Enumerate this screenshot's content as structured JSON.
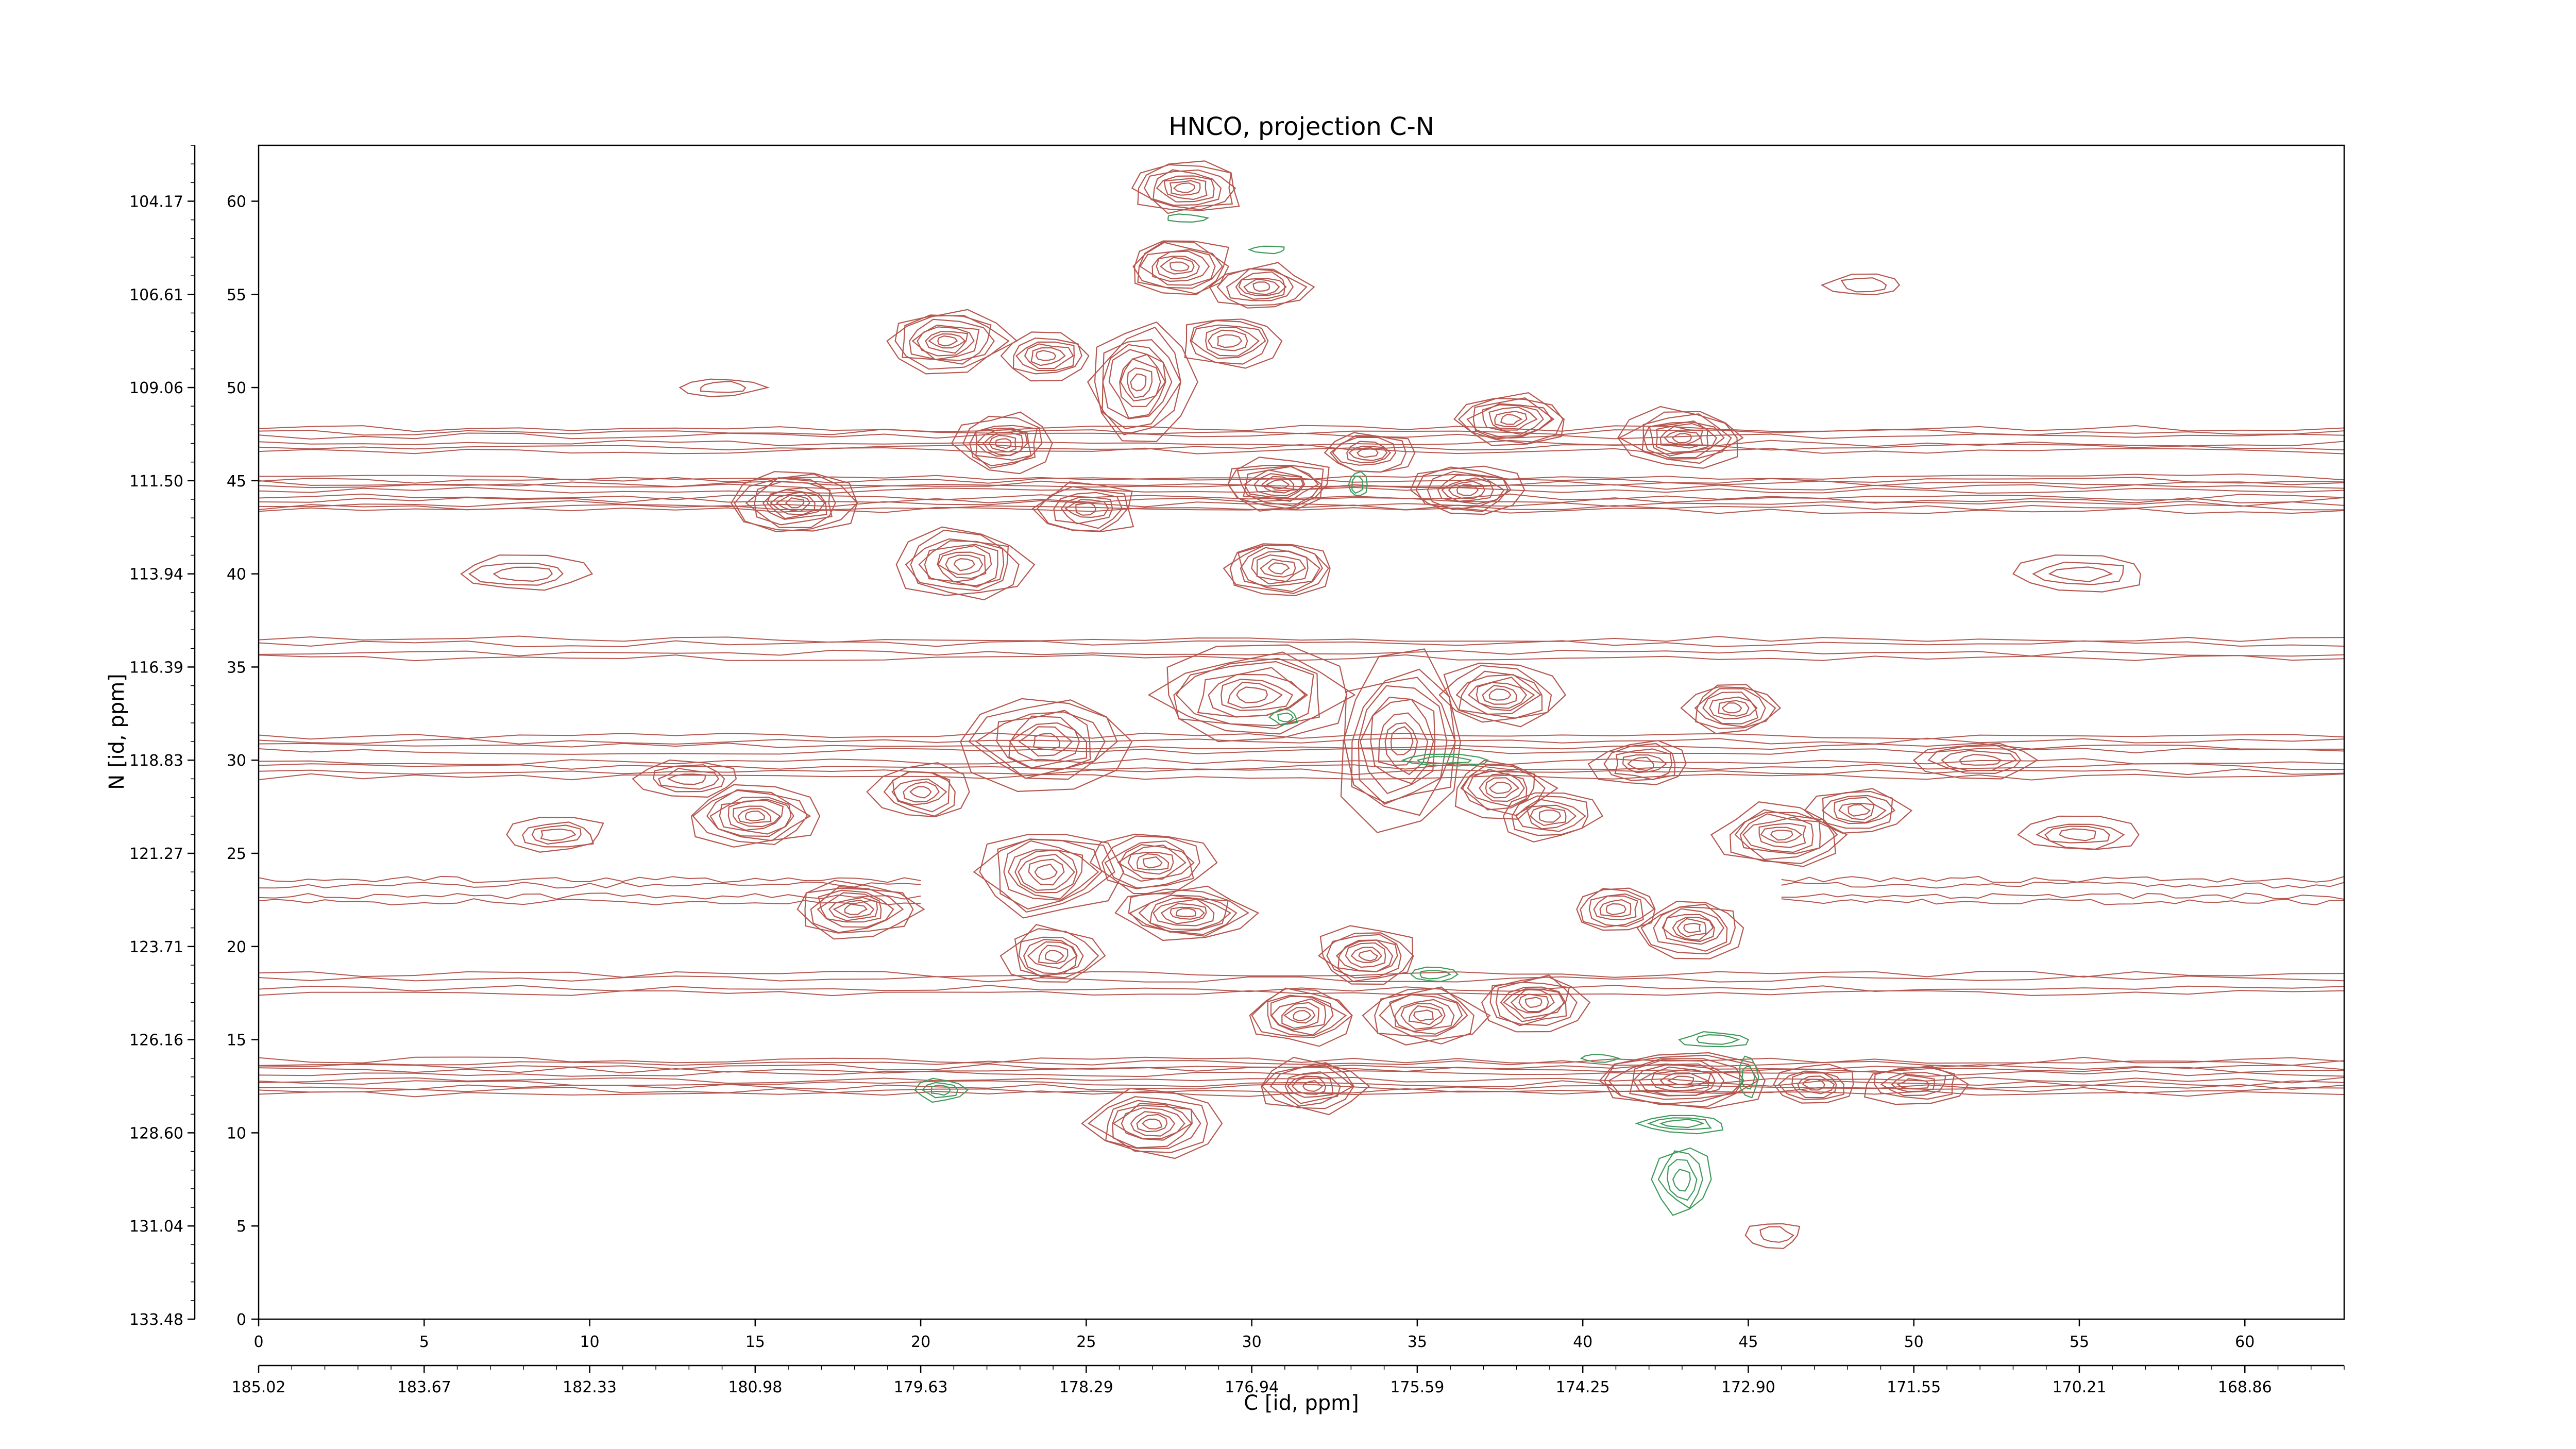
{
  "chart_data": {
    "type": "contour",
    "title": "HNCO, projection C-N",
    "xlabel": "C [id, ppm]",
    "ylabel": "N [id, ppm]",
    "xlim": [
      0,
      63
    ],
    "ylim": [
      0,
      63
    ],
    "x_index_ticks": [
      "0",
      "5",
      "10",
      "15",
      "20",
      "25",
      "30",
      "35",
      "40",
      "45",
      "50",
      "55",
      "60"
    ],
    "x_ppm_ticks": [
      "185.02",
      "183.67",
      "182.33",
      "180.98",
      "179.63",
      "178.29",
      "176.94",
      "175.59",
      "174.25",
      "172.90",
      "171.55",
      "170.21",
      "168.86"
    ],
    "y_index_ticks": [
      "0",
      "5",
      "10",
      "15",
      "20",
      "25",
      "30",
      "35",
      "40",
      "45",
      "50",
      "55",
      "60"
    ],
    "y_ppm_ticks": [
      "133.48",
      "131.04",
      "128.60",
      "126.16",
      "123.71",
      "121.27",
      "118.83",
      "116.39",
      "113.94",
      "111.50",
      "109.06",
      "106.61",
      "104.17"
    ],
    "colors": {
      "positive": "#b5574f",
      "negative": "#3f9a5b",
      "axis": "#000000"
    },
    "peaks": [
      {
        "x": 28.0,
        "y": 60.7,
        "rx": 1.7,
        "ry": 1.4,
        "levels": 8
      },
      {
        "x": 27.8,
        "y": 56.5,
        "rx": 1.6,
        "ry": 1.5,
        "levels": 8
      },
      {
        "x": 30.3,
        "y": 55.4,
        "rx": 1.4,
        "ry": 1.2,
        "levels": 7
      },
      {
        "x": 20.8,
        "y": 52.5,
        "rx": 1.8,
        "ry": 1.6,
        "levels": 9
      },
      {
        "x": 23.8,
        "y": 51.7,
        "rx": 1.3,
        "ry": 1.2,
        "levels": 6
      },
      {
        "x": 26.6,
        "y": 50.3,
        "rx": 1.5,
        "ry": 3.0,
        "levels": 9
      },
      {
        "x": 29.3,
        "y": 52.5,
        "rx": 1.5,
        "ry": 1.4,
        "levels": 6
      },
      {
        "x": 22.5,
        "y": 47.0,
        "rx": 1.4,
        "ry": 1.5,
        "levels": 8
      },
      {
        "x": 37.8,
        "y": 48.3,
        "rx": 1.7,
        "ry": 1.4,
        "levels": 8
      },
      {
        "x": 43.0,
        "y": 47.3,
        "rx": 1.8,
        "ry": 1.5,
        "levels": 9
      },
      {
        "x": 16.2,
        "y": 43.8,
        "rx": 1.8,
        "ry": 1.6,
        "levels": 9
      },
      {
        "x": 30.8,
        "y": 44.8,
        "rx": 1.7,
        "ry": 1.4,
        "levels": 8
      },
      {
        "x": 33.5,
        "y": 46.5,
        "rx": 1.3,
        "ry": 1.1,
        "levels": 6
      },
      {
        "x": 36.5,
        "y": 44.5,
        "rx": 1.6,
        "ry": 1.3,
        "levels": 7
      },
      {
        "x": 25.0,
        "y": 43.5,
        "rx": 1.5,
        "ry": 1.4,
        "levels": 6
      },
      {
        "x": 21.3,
        "y": 40.5,
        "rx": 1.9,
        "ry": 1.9,
        "levels": 9
      },
      {
        "x": 30.8,
        "y": 40.3,
        "rx": 1.7,
        "ry": 1.6,
        "levels": 8
      },
      {
        "x": 30.0,
        "y": 33.5,
        "rx": 3.0,
        "ry": 2.4,
        "levels": 9
      },
      {
        "x": 34.5,
        "y": 31.0,
        "rx": 2.0,
        "ry": 4.5,
        "levels": 9
      },
      {
        "x": 37.5,
        "y": 33.5,
        "rx": 1.8,
        "ry": 1.6,
        "levels": 8
      },
      {
        "x": 44.5,
        "y": 32.8,
        "rx": 1.4,
        "ry": 1.3,
        "levels": 7
      },
      {
        "x": 23.8,
        "y": 31.0,
        "rx": 2.4,
        "ry": 2.4,
        "levels": 8
      },
      {
        "x": 20.0,
        "y": 28.3,
        "rx": 1.4,
        "ry": 1.4,
        "levels": 6
      },
      {
        "x": 15.0,
        "y": 27.0,
        "rx": 1.9,
        "ry": 1.6,
        "levels": 9
      },
      {
        "x": 23.8,
        "y": 24.0,
        "rx": 2.1,
        "ry": 2.4,
        "levels": 9
      },
      {
        "x": 27.0,
        "y": 24.5,
        "rx": 1.7,
        "ry": 1.6,
        "levels": 8
      },
      {
        "x": 37.5,
        "y": 28.5,
        "rx": 1.5,
        "ry": 1.5,
        "levels": 7
      },
      {
        "x": 39.0,
        "y": 27.0,
        "rx": 1.4,
        "ry": 1.3,
        "levels": 6
      },
      {
        "x": 46.0,
        "y": 26.0,
        "rx": 1.9,
        "ry": 1.6,
        "levels": 8
      },
      {
        "x": 48.3,
        "y": 27.3,
        "rx": 1.4,
        "ry": 1.2,
        "levels": 6
      },
      {
        "x": 18.0,
        "y": 22.0,
        "rx": 1.8,
        "ry": 1.5,
        "levels": 8
      },
      {
        "x": 28.0,
        "y": 21.8,
        "rx": 2.0,
        "ry": 1.4,
        "levels": 9
      },
      {
        "x": 24.0,
        "y": 19.5,
        "rx": 1.4,
        "ry": 1.5,
        "levels": 7
      },
      {
        "x": 33.5,
        "y": 19.5,
        "rx": 1.5,
        "ry": 1.5,
        "levels": 8
      },
      {
        "x": 43.3,
        "y": 21.0,
        "rx": 1.5,
        "ry": 1.5,
        "levels": 8
      },
      {
        "x": 41.0,
        "y": 22.0,
        "rx": 1.3,
        "ry": 1.2,
        "levels": 6
      },
      {
        "x": 38.5,
        "y": 17.0,
        "rx": 1.5,
        "ry": 1.5,
        "levels": 8
      },
      {
        "x": 31.5,
        "y": 16.3,
        "rx": 1.5,
        "ry": 1.5,
        "levels": 8
      },
      {
        "x": 35.2,
        "y": 16.3,
        "rx": 1.7,
        "ry": 1.6,
        "levels": 8
      },
      {
        "x": 31.8,
        "y": 12.5,
        "rx": 1.5,
        "ry": 1.4,
        "levels": 7
      },
      {
        "x": 27.0,
        "y": 10.5,
        "rx": 1.9,
        "ry": 1.7,
        "levels": 9
      },
      {
        "x": 43.0,
        "y": 12.8,
        "rx": 2.5,
        "ry": 1.5,
        "levels": 9
      },
      {
        "x": 47.0,
        "y": 12.6,
        "rx": 1.2,
        "ry": 1.0,
        "levels": 5
      },
      {
        "x": 50.0,
        "y": 12.6,
        "rx": 1.6,
        "ry": 1.0,
        "levels": 5
      },
      {
        "x": 41.8,
        "y": 29.8,
        "rx": 1.4,
        "ry": 1.2,
        "levels": 5
      },
      {
        "x": 13.0,
        "y": 29.0,
        "rx": 1.6,
        "ry": 0.9,
        "levels": 4
      },
      {
        "x": 9.0,
        "y": 26.0,
        "rx": 1.5,
        "ry": 0.9,
        "levels": 4
      },
      {
        "x": 52.0,
        "y": 30.0,
        "rx": 1.8,
        "ry": 0.9,
        "levels": 4
      },
      {
        "x": 55.0,
        "y": 26.0,
        "rx": 1.7,
        "ry": 0.9,
        "levels": 4
      },
      {
        "x": 8.0,
        "y": 40.0,
        "rx": 2.0,
        "ry": 0.9,
        "levels": 3
      },
      {
        "x": 55.0,
        "y": 40.0,
        "rx": 2.0,
        "ry": 0.9,
        "levels": 3
      },
      {
        "x": 45.8,
        "y": 4.5,
        "rx": 0.8,
        "ry": 0.7,
        "levels": 2
      },
      {
        "x": 48.5,
        "y": 55.5,
        "rx": 1.2,
        "ry": 0.6,
        "levels": 2
      },
      {
        "x": 14.0,
        "y": 50.0,
        "rx": 1.2,
        "ry": 0.5,
        "levels": 2
      }
    ],
    "bands": [
      {
        "y": 13.0,
        "x0": 0,
        "x1": 63,
        "half_width": 0.9,
        "levels": 5
      },
      {
        "y": 44.3,
        "x0": 0,
        "x1": 63,
        "half_width": 0.9,
        "levels": 5
      },
      {
        "y": 30.2,
        "x0": 0,
        "x1": 63,
        "half_width": 1.1,
        "levels": 4
      },
      {
        "y": 36.0,
        "x0": 0,
        "x1": 63,
        "half_width": 0.5,
        "levels": 2
      },
      {
        "y": 18.0,
        "x0": 0,
        "x1": 63,
        "half_width": 0.5,
        "levels": 2
      },
      {
        "y": 47.2,
        "x0": 0,
        "x1": 63,
        "half_width": 0.6,
        "levels": 3
      },
      {
        "y": 23.0,
        "x0": 0,
        "x1": 20,
        "half_width": 0.6,
        "levels": 2
      },
      {
        "y": 23.0,
        "x0": 46,
        "x1": 63,
        "half_width": 0.6,
        "levels": 2
      }
    ],
    "negative_peaks": [
      {
        "x": 43.0,
        "y": 7.5,
        "rx": 0.8,
        "ry": 1.8,
        "levels": 4
      },
      {
        "x": 43.0,
        "y": 10.5,
        "rx": 1.3,
        "ry": 0.5,
        "levels": 3
      },
      {
        "x": 44.0,
        "y": 15.0,
        "rx": 1.0,
        "ry": 0.4,
        "levels": 2
      },
      {
        "x": 20.6,
        "y": 12.3,
        "rx": 0.7,
        "ry": 0.6,
        "levels": 3
      },
      {
        "x": 35.5,
        "y": 18.5,
        "rx": 0.7,
        "ry": 0.4,
        "levels": 2
      },
      {
        "x": 35.8,
        "y": 30.0,
        "rx": 1.4,
        "ry": 0.3,
        "levels": 2
      },
      {
        "x": 33.2,
        "y": 44.8,
        "rx": 0.3,
        "ry": 0.7,
        "levels": 2
      },
      {
        "x": 31.0,
        "y": 32.3,
        "rx": 0.4,
        "ry": 0.4,
        "levels": 2
      },
      {
        "x": 28.0,
        "y": 59.1,
        "rx": 0.6,
        "ry": 0.2,
        "levels": 1
      },
      {
        "x": 30.5,
        "y": 57.4,
        "rx": 0.5,
        "ry": 0.2,
        "levels": 1
      },
      {
        "x": 40.5,
        "y": 14.0,
        "rx": 0.5,
        "ry": 0.2,
        "levels": 1
      },
      {
        "x": 45.0,
        "y": 13.0,
        "rx": 0.3,
        "ry": 1.0,
        "levels": 2
      }
    ]
  }
}
